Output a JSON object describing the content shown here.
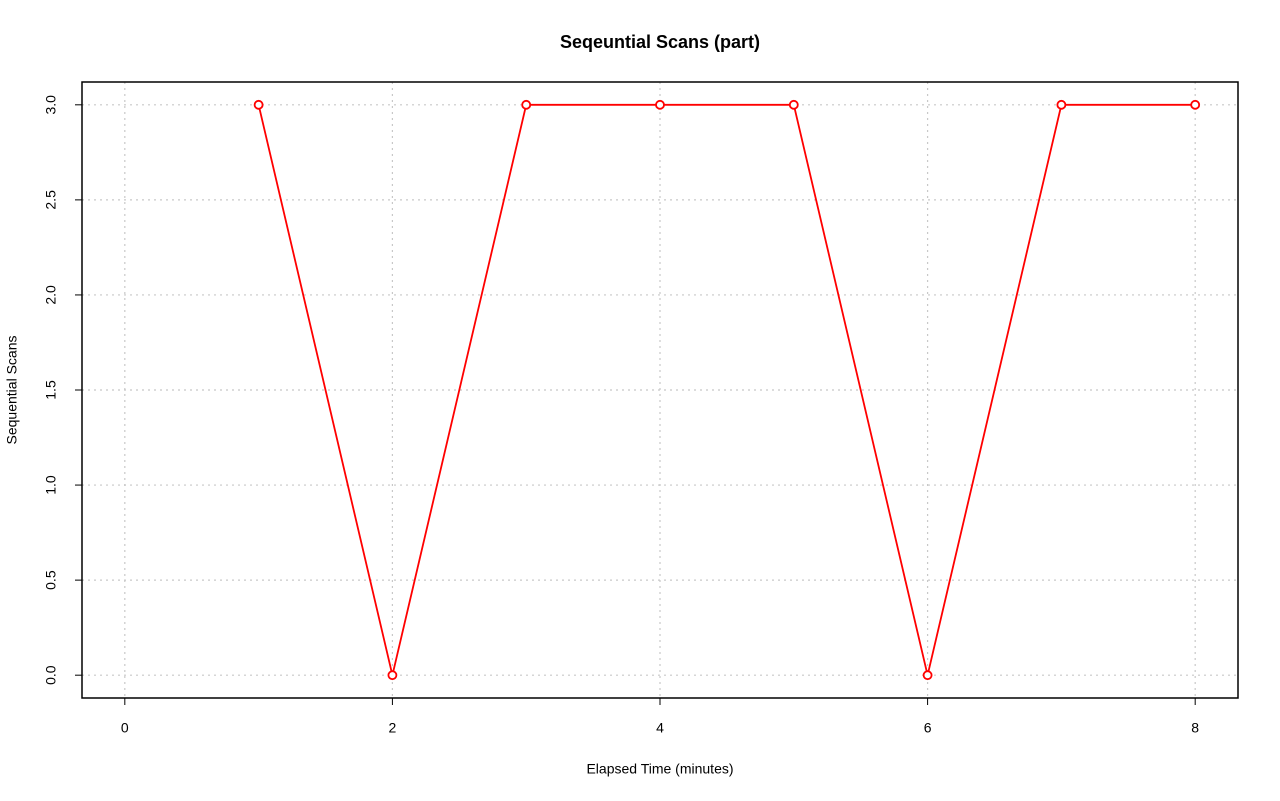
{
  "chart_data": {
    "type": "line",
    "title": "Seqeuntial Scans (part)",
    "x_label": "Elapsed Time (minutes)",
    "y_label": "Sequential Scans",
    "x": [
      1,
      2,
      3,
      4,
      5,
      6,
      7,
      8
    ],
    "series": [
      {
        "name": "Sequential Scans",
        "color": "#ff0000",
        "values": [
          3,
          0,
          3,
          3,
          3,
          0,
          3,
          3
        ]
      }
    ],
    "xlim": [
      -0.32,
      8.32
    ],
    "xticks": [
      0,
      2,
      4,
      6,
      8
    ],
    "ylim": [
      -0.12,
      3.12
    ],
    "yticks": [
      {
        "value": 0,
        "label": "0.0"
      },
      0.5,
      {
        "value": 1,
        "label": "1.0"
      },
      1.5,
      {
        "value": 2,
        "label": "2.0"
      },
      2.5,
      {
        "value": 3,
        "label": "3.0"
      }
    ],
    "grid": true
  }
}
